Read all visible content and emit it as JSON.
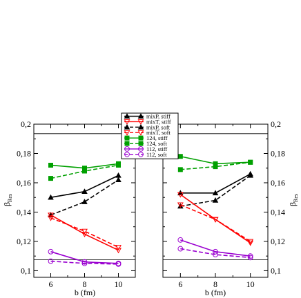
{
  "chart_data": {
    "type": "line",
    "xlabel": "b (fm)",
    "ylabel": "β",
    "ylabel_sub": "Res",
    "x_ticks": [
      6,
      8,
      10
    ],
    "y_ticks": [
      0.1,
      0.12,
      0.14,
      0.16,
      0.18,
      0.2
    ],
    "y_tick_labels": [
      "0,1",
      "0,12",
      "0,14",
      "0,16",
      "0,18",
      "0,2"
    ],
    "xlim": [
      5,
      11
    ],
    "ylim": [
      0.0955,
      0.2
    ],
    "reference_lines_y": [
      0.1075,
      0.1935
    ],
    "legend_position": "top-center",
    "legend": [
      {
        "label": "mixP, stiff",
        "color": "#000000",
        "dash": false,
        "marker": "triangle-up"
      },
      {
        "label": "mixT, stiff",
        "color": "#ff0000",
        "dash": false,
        "marker": "triangle-down-open"
      },
      {
        "label": "mixP, soft",
        "color": "#000000",
        "dash": true,
        "marker": "triangle-up"
      },
      {
        "label": "mixT, soft",
        "color": "#ff0000",
        "dash": true,
        "marker": "triangle-down-open"
      },
      {
        "label": "124, stiff",
        "color": "#00a000",
        "dash": false,
        "marker": "square"
      },
      {
        "label": "124, soft",
        "color": "#00a000",
        "dash": true,
        "marker": "square"
      },
      {
        "label": "112, stiff",
        "color": "#9a00d0",
        "dash": false,
        "marker": "circle-open"
      },
      {
        "label": "112, soft",
        "color": "#9a00d0",
        "dash": true,
        "marker": "circle-open"
      }
    ],
    "panels": [
      {
        "name": "left",
        "series": [
          {
            "legend_index": 0,
            "x": [
              6,
              8,
              10
            ],
            "y": [
              0.15,
              0.154,
              0.165
            ]
          },
          {
            "legend_index": 2,
            "x": [
              6,
              8,
              10
            ],
            "y": [
              0.138,
              0.147,
              0.162
            ]
          },
          {
            "legend_index": 1,
            "x": [
              6,
              8,
              10
            ],
            "y": [
              0.138,
              0.125,
              0.114
            ]
          },
          {
            "legend_index": 3,
            "x": [
              6,
              8,
              10
            ],
            "y": [
              0.136,
              0.127,
              0.116
            ]
          },
          {
            "legend_index": 4,
            "x": [
              6,
              8,
              10
            ],
            "y": [
              0.172,
              0.17,
              0.173
            ]
          },
          {
            "legend_index": 5,
            "x": [
              6,
              8,
              10
            ],
            "y": [
              0.163,
              0.168,
              0.172
            ]
          },
          {
            "legend_index": 6,
            "x": [
              6,
              8,
              10
            ],
            "y": [
              0.113,
              0.106,
              0.105
            ]
          },
          {
            "legend_index": 7,
            "x": [
              6,
              8,
              10
            ],
            "y": [
              0.1065,
              0.105,
              0.1045
            ]
          }
        ]
      },
      {
        "name": "right",
        "series": [
          {
            "legend_index": 0,
            "x": [
              6,
              8,
              10
            ],
            "y": [
              0.153,
              0.153,
              0.166
            ]
          },
          {
            "legend_index": 2,
            "x": [
              6,
              8,
              10
            ],
            "y": [
              0.144,
              0.148,
              0.165
            ]
          },
          {
            "legend_index": 1,
            "x": [
              6,
              8,
              10
            ],
            "y": [
              0.152,
              0.135,
              0.119
            ]
          },
          {
            "legend_index": 3,
            "x": [
              6,
              8,
              10
            ],
            "y": [
              0.145,
              0.135,
              0.12
            ]
          },
          {
            "legend_index": 4,
            "x": [
              6,
              8,
              10
            ],
            "y": [
              0.178,
              0.173,
              0.174
            ]
          },
          {
            "legend_index": 5,
            "x": [
              6,
              8,
              10
            ],
            "y": [
              0.169,
              0.171,
              0.174
            ]
          },
          {
            "legend_index": 6,
            "x": [
              6,
              8,
              10
            ],
            "y": [
              0.121,
              0.113,
              0.11
            ]
          },
          {
            "legend_index": 7,
            "x": [
              6,
              8,
              10
            ],
            "y": [
              0.115,
              0.111,
              0.109
            ]
          }
        ]
      }
    ]
  }
}
